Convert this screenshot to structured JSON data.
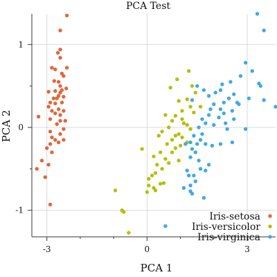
{
  "chart_data": {
    "type": "scatter",
    "title": "PCA Test",
    "xlabel": "PCA 1",
    "ylabel": "PCA 2",
    "xlim": [
      -3.45,
      3.85
    ],
    "ylim": [
      -1.32,
      1.37
    ],
    "xticks": [
      -3,
      0,
      3
    ],
    "yticks": [
      -1,
      0,
      1
    ],
    "grid": true,
    "legend_position": "bottom-right",
    "series": [
      {
        "name": "Iris-setosa",
        "color": "#e0673c",
        "points": [
          [
            -2.4,
            1.35
          ],
          [
            -2.6,
            1.17
          ],
          [
            -2.6,
            0.94
          ],
          [
            -2.67,
            0.9
          ],
          [
            -2.85,
            0.72
          ],
          [
            -2.6,
            0.84
          ],
          [
            -2.75,
            0.7
          ],
          [
            -2.4,
            0.72
          ],
          [
            -2.55,
            0.65
          ],
          [
            -2.5,
            0.62
          ],
          [
            -2.65,
            0.55
          ],
          [
            -2.78,
            0.56
          ],
          [
            -2.6,
            0.5
          ],
          [
            -2.55,
            0.45
          ],
          [
            -2.75,
            0.44
          ],
          [
            -2.95,
            0.43
          ],
          [
            -2.42,
            0.47
          ],
          [
            -2.6,
            0.42
          ],
          [
            -2.65,
            0.38
          ],
          [
            -2.7,
            0.35
          ],
          [
            -2.8,
            0.35
          ],
          [
            -2.5,
            0.37
          ],
          [
            -2.9,
            0.3
          ],
          [
            -2.75,
            0.29
          ],
          [
            -2.55,
            0.3
          ],
          [
            -2.95,
            0.25
          ],
          [
            -2.85,
            0.2
          ],
          [
            -2.65,
            0.22
          ],
          [
            -2.5,
            0.2
          ],
          [
            -2.75,
            0.17
          ],
          [
            -2.6,
            0.15
          ],
          [
            -2.9,
            0.1
          ],
          [
            -2.6,
            0.08
          ],
          [
            -2.45,
            0.08
          ],
          [
            -2.7,
            0.04
          ],
          [
            -2.5,
            -0.02
          ],
          [
            -3.25,
            0.13
          ],
          [
            -2.9,
            -0.05
          ],
          [
            -2.85,
            -0.12
          ],
          [
            -2.6,
            -0.08
          ],
          [
            -2.75,
            -0.15
          ],
          [
            -2.9,
            -0.2
          ],
          [
            -2.5,
            -0.15
          ],
          [
            -2.65,
            -0.18
          ],
          [
            -3.0,
            -0.25
          ],
          [
            -2.85,
            -0.3
          ],
          [
            -3.15,
            -0.4
          ],
          [
            -2.95,
            -0.45
          ],
          [
            -3.3,
            -0.5
          ],
          [
            -3.05,
            -0.6
          ],
          [
            -2.9,
            -0.93
          ]
        ]
      },
      {
        "name": "Iris-versicolor",
        "color": "#b6bf0d",
        "points": [
          [
            1.25,
            0.68
          ],
          [
            0.9,
            0.58
          ],
          [
            1.35,
            0.5
          ],
          [
            1.45,
            0.42
          ],
          [
            0.7,
            0.48
          ],
          [
            1.2,
            0.34
          ],
          [
            0.95,
            0.32
          ],
          [
            1.6,
            0.25
          ],
          [
            1.05,
            0.2
          ],
          [
            1.3,
            0.25
          ],
          [
            1.4,
            0.18
          ],
          [
            0.85,
            0.14
          ],
          [
            1.05,
            0.1
          ],
          [
            0.55,
            0.15
          ],
          [
            0.75,
            0.08
          ],
          [
            1.1,
            0.05
          ],
          [
            1.2,
            0.03
          ],
          [
            1.3,
            -0.02
          ],
          [
            0.65,
            0.0
          ],
          [
            0.45,
            -0.05
          ],
          [
            0.95,
            -0.08
          ],
          [
            1.05,
            -0.12
          ],
          [
            0.85,
            -0.1
          ],
          [
            0.75,
            -0.15
          ],
          [
            1.2,
            -0.18
          ],
          [
            0.35,
            -0.1
          ],
          [
            0.6,
            -0.2
          ],
          [
            1.0,
            -0.22
          ],
          [
            0.85,
            -0.25
          ],
          [
            -0.15,
            -0.26
          ],
          [
            0.4,
            -0.3
          ],
          [
            0.75,
            -0.3
          ],
          [
            0.2,
            -0.35
          ],
          [
            0.55,
            -0.38
          ],
          [
            0.65,
            -0.43
          ],
          [
            0.95,
            -0.4
          ],
          [
            0.3,
            -0.45
          ],
          [
            0.45,
            -0.5
          ],
          [
            0.25,
            -0.55
          ],
          [
            0.15,
            -0.58
          ],
          [
            0.05,
            -0.62
          ],
          [
            0.5,
            -0.67
          ],
          [
            0.4,
            -0.68
          ],
          [
            0.05,
            -0.7
          ],
          [
            0.2,
            -0.73
          ],
          [
            0.25,
            -0.76
          ],
          [
            0.0,
            -0.78
          ],
          [
            -0.95,
            -0.76
          ],
          [
            -0.75,
            -1.0
          ],
          [
            -0.7,
            -1.02
          ],
          [
            -0.55,
            -1.27
          ]
        ]
      },
      {
        "name": "Iris-virginica",
        "color": "#3fa9e8",
        "points": [
          [
            3.3,
            1.37
          ],
          [
            3.5,
            1.17
          ],
          [
            2.95,
            0.78
          ],
          [
            3.15,
            0.68
          ],
          [
            2.8,
            0.62
          ],
          [
            2.5,
            0.55
          ],
          [
            3.35,
            0.53
          ],
          [
            1.5,
            0.5
          ],
          [
            2.25,
            0.52
          ],
          [
            3.4,
            0.5
          ],
          [
            1.7,
            0.45
          ],
          [
            2.2,
            0.45
          ],
          [
            2.05,
            0.42
          ],
          [
            2.6,
            0.4
          ],
          [
            1.85,
            0.38
          ],
          [
            2.45,
            0.35
          ],
          [
            2.7,
            0.3
          ],
          [
            1.35,
            0.33
          ],
          [
            2.3,
            0.3
          ],
          [
            2.75,
            0.28
          ],
          [
            2.0,
            0.28
          ],
          [
            2.2,
            0.22
          ],
          [
            1.9,
            0.22
          ],
          [
            2.55,
            0.2
          ],
          [
            2.3,
            0.17
          ],
          [
            3.5,
            0.33
          ],
          [
            3.05,
            0.35
          ],
          [
            1.85,
            0.15
          ],
          [
            2.15,
            0.12
          ],
          [
            2.6,
            0.1
          ],
          [
            1.65,
            0.1
          ],
          [
            3.85,
            0.25
          ],
          [
            2.35,
            0.05
          ],
          [
            1.75,
            0.05
          ],
          [
            2.0,
            0.03
          ],
          [
            1.55,
            0.0
          ],
          [
            2.4,
            -0.02
          ],
          [
            2.95,
            -0.02
          ],
          [
            1.65,
            -0.08
          ],
          [
            1.4,
            -0.1
          ],
          [
            1.6,
            -0.15
          ],
          [
            1.3,
            -0.18
          ],
          [
            1.5,
            -0.2
          ],
          [
            2.2,
            -0.2
          ],
          [
            1.75,
            -0.2
          ],
          [
            1.95,
            -0.22
          ],
          [
            2.55,
            -0.18
          ],
          [
            1.15,
            -0.2
          ],
          [
            1.35,
            -0.26
          ],
          [
            1.45,
            -0.3
          ],
          [
            1.3,
            -0.36
          ],
          [
            1.55,
            -0.4
          ],
          [
            1.85,
            -0.45
          ],
          [
            1.6,
            -0.5
          ],
          [
            1.75,
            -0.52
          ],
          [
            1.2,
            -0.52
          ],
          [
            1.4,
            -0.58
          ],
          [
            1.45,
            -0.65
          ],
          [
            1.25,
            -0.58
          ],
          [
            1.3,
            -0.7
          ],
          [
            1.1,
            -0.73
          ],
          [
            1.3,
            -0.77
          ],
          [
            1.35,
            -0.8
          ],
          [
            1.7,
            -0.85
          ],
          [
            0.55,
            -1.19
          ]
        ]
      }
    ]
  }
}
